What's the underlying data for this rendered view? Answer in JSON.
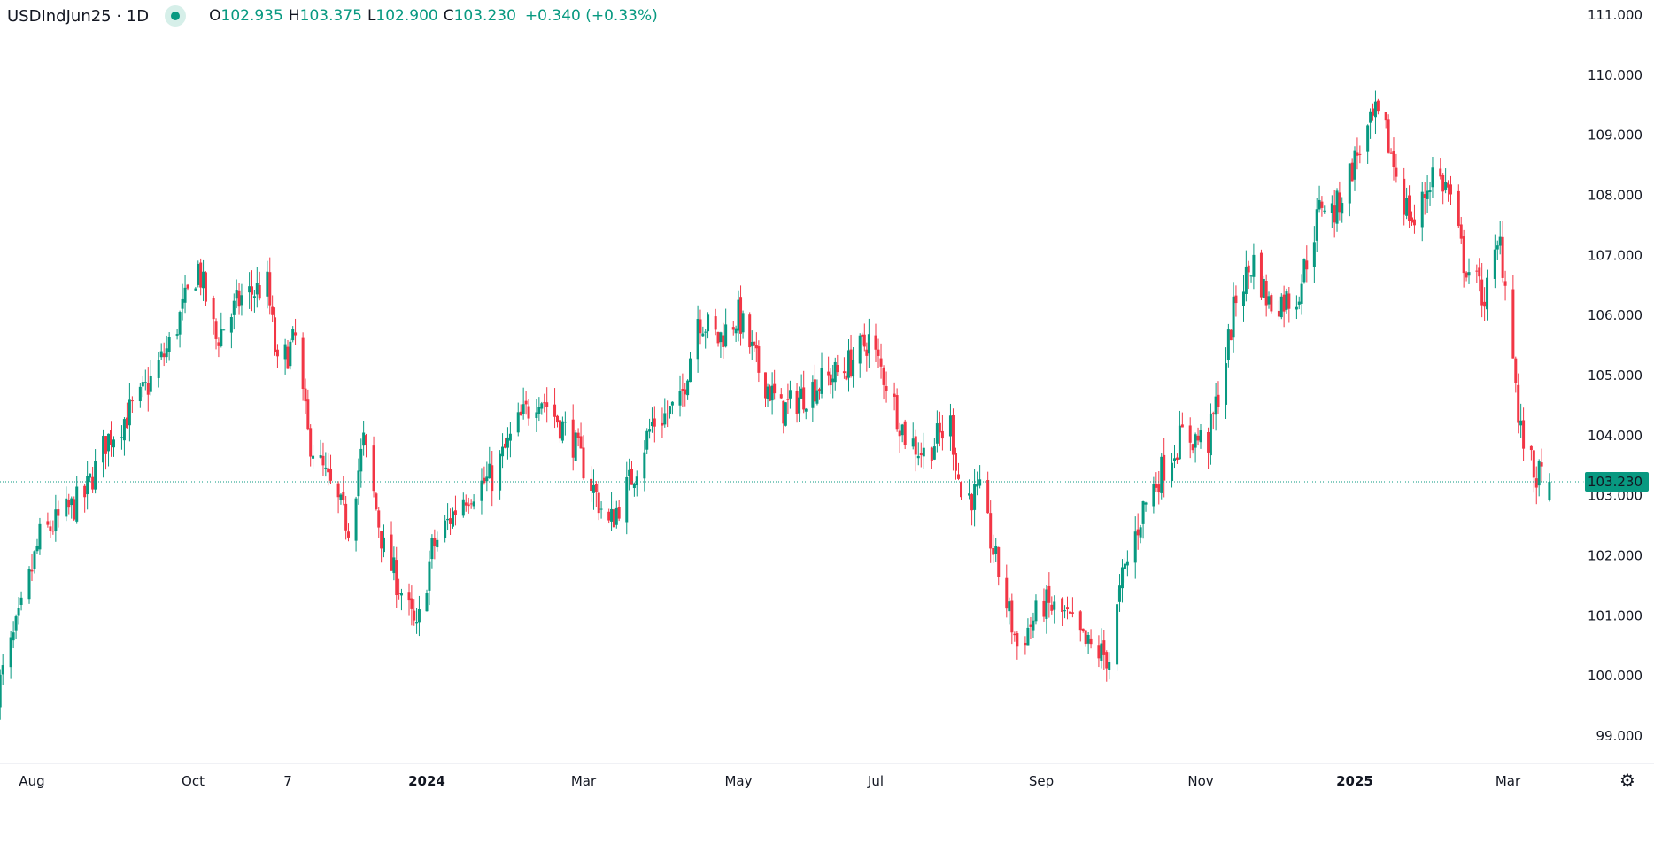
{
  "header": {
    "symbol": "USDIndJun25 · 1D",
    "open_label": "O",
    "open": "102.935",
    "high_label": "H",
    "high": "103.375",
    "low_label": "L",
    "low": "102.900",
    "close_label": "C",
    "close": "103.230",
    "change": "+0.340 (+0.33%)",
    "status_icon": "market-open-dot-icon"
  },
  "settings_icon": "gear-icon",
  "colors": {
    "up": "#089981",
    "down": "#F23645",
    "last_price": "#089981",
    "axis_line": "#e0e3eb"
  },
  "chart_data": {
    "type": "candlestick",
    "title": "",
    "interval": "1D",
    "ylim": [
      98.6,
      111.2
    ],
    "y_ticks": [
      "111.000",
      "110.000",
      "109.000",
      "108.000",
      "107.000",
      "106.000",
      "105.000",
      "104.000",
      "103.000",
      "102.000",
      "101.000",
      "100.000",
      "99.000"
    ],
    "x_ticks": [
      "Aug",
      "Oct",
      "7",
      "2024",
      "Mar",
      "May",
      "Jul",
      "Sep",
      "Nov",
      "2025",
      "Mar"
    ],
    "x_ticks_bold": [
      "2024",
      "2025"
    ],
    "last_price": "103.230",
    "grid": false,
    "last_candle": {
      "date": "2025-03-17",
      "open": 102.935,
      "high": 103.375,
      "low": 102.9,
      "close": 103.23
    },
    "approx_closes": [
      [
        "2023-07-19",
        99.75
      ],
      [
        "2023-07-27",
        100.9
      ],
      [
        "2023-08-04",
        102.3
      ],
      [
        "2023-08-21",
        103.0
      ],
      [
        "2023-08-29",
        103.9
      ],
      [
        "2023-09-11",
        104.6
      ],
      [
        "2023-09-22",
        105.5
      ],
      [
        "2023-10-03",
        106.8
      ],
      [
        "2023-10-10",
        105.6
      ],
      [
        "2023-10-20",
        106.3
      ],
      [
        "2023-10-30",
        106.5
      ],
      [
        "2023-11-03",
        105.1
      ],
      [
        "2023-11-10",
        105.6
      ],
      [
        "2023-11-15",
        104.0
      ],
      [
        "2023-11-22",
        103.3
      ],
      [
        "2023-12-01",
        102.5
      ],
      [
        "2023-12-07",
        103.9
      ],
      [
        "2023-12-15",
        102.1
      ],
      [
        "2023-12-22",
        101.4
      ],
      [
        "2023-12-28",
        100.7
      ],
      [
        "2024-01-03",
        102.1
      ],
      [
        "2024-01-15",
        103.0
      ],
      [
        "2024-01-26",
        103.3
      ],
      [
        "2024-02-05",
        104.2
      ],
      [
        "2024-02-13",
        104.7
      ],
      [
        "2024-02-26",
        103.9
      ],
      [
        "2024-03-04",
        103.2
      ],
      [
        "2024-03-11",
        102.5
      ],
      [
        "2024-03-20",
        103.3
      ],
      [
        "2024-03-28",
        104.2
      ],
      [
        "2024-04-08",
        104.5
      ],
      [
        "2024-04-15",
        106.0
      ],
      [
        "2024-04-23",
        105.6
      ],
      [
        "2024-05-01",
        106.0
      ],
      [
        "2024-05-10",
        105.1
      ],
      [
        "2024-05-20",
        104.4
      ],
      [
        "2024-06-03",
        104.8
      ],
      [
        "2024-06-17",
        105.1
      ],
      [
        "2024-06-28",
        105.6
      ],
      [
        "2024-07-05",
        104.9
      ],
      [
        "2024-07-12",
        104.0
      ],
      [
        "2024-07-19",
        103.7
      ],
      [
        "2024-07-29",
        104.2
      ],
      [
        "2024-08-02",
        103.0
      ],
      [
        "2024-08-09",
        103.0
      ],
      [
        "2024-08-15",
        101.9
      ],
      [
        "2024-08-23",
        100.5
      ],
      [
        "2024-09-02",
        101.2
      ],
      [
        "2024-09-10",
        101.0
      ],
      [
        "2024-09-18",
        100.5
      ],
      [
        "2024-09-27",
        100.3
      ],
      [
        "2024-10-02",
        101.6
      ],
      [
        "2024-10-10",
        102.8
      ],
      [
        "2024-10-18",
        103.5
      ],
      [
        "2024-10-25",
        104.0
      ],
      [
        "2024-11-04",
        103.9
      ],
      [
        "2024-11-11",
        105.3
      ],
      [
        "2024-11-15",
        106.3
      ],
      [
        "2024-11-22",
        106.9
      ],
      [
        "2024-11-28",
        106.2
      ],
      [
        "2024-12-09",
        106.3
      ],
      [
        "2024-12-19",
        107.9
      ],
      [
        "2024-12-24",
        107.7
      ],
      [
        "2025-01-03",
        108.8
      ],
      [
        "2025-01-09",
        109.3
      ],
      [
        "2025-01-13",
        109.0
      ],
      [
        "2025-01-20",
        107.9
      ],
      [
        "2025-01-24",
        107.5
      ],
      [
        "2025-01-31",
        108.4
      ],
      [
        "2025-02-06",
        108.1
      ],
      [
        "2025-02-12",
        106.9
      ],
      [
        "2025-02-20",
        106.3
      ],
      [
        "2025-02-26",
        107.2
      ],
      [
        "2025-03-03",
        105.5
      ],
      [
        "2025-03-05",
        104.2
      ],
      [
        "2025-03-11",
        103.35
      ],
      [
        "2025-03-17",
        103.23
      ]
    ]
  }
}
